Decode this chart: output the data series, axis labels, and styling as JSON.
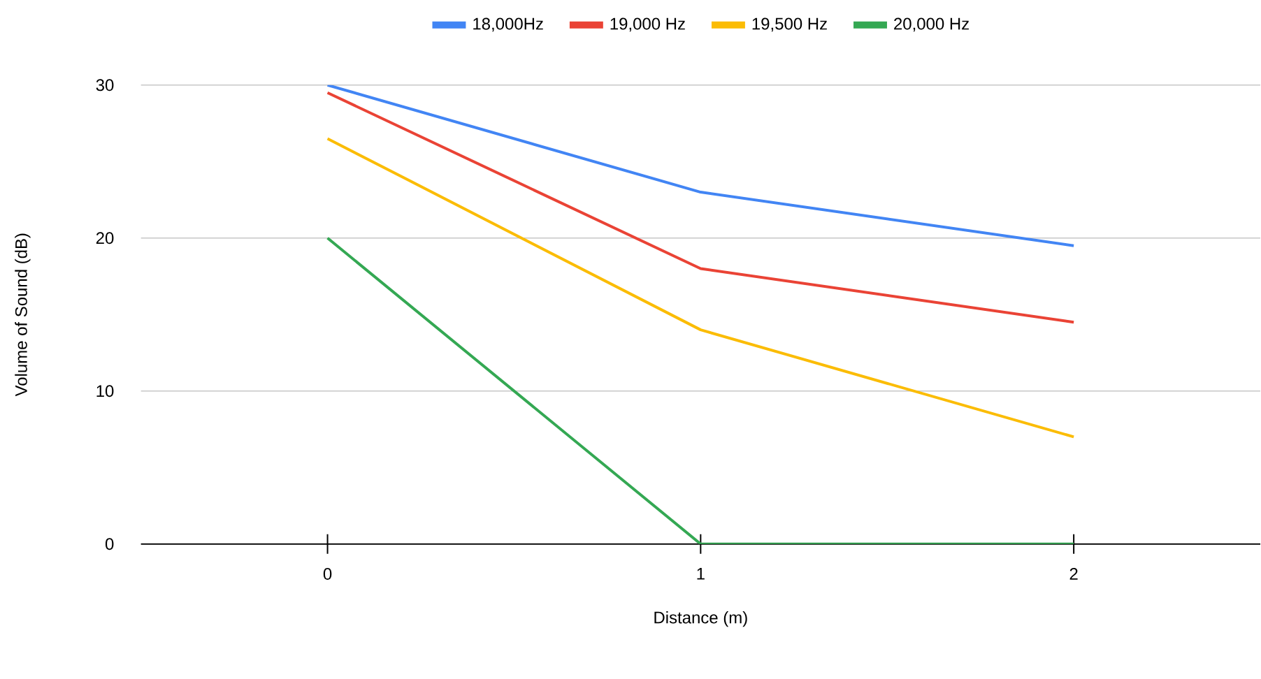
{
  "chart_data": {
    "type": "line",
    "xlabel": "Distance (m)",
    "ylabel": "Volume of Sound (dB)",
    "x": [
      0,
      1,
      2
    ],
    "series": [
      {
        "name": "18,000Hz",
        "color": "#4285f4",
        "values": [
          30,
          23,
          19.5
        ]
      },
      {
        "name": "19,000 Hz",
        "color": "#ea4335",
        "values": [
          29.5,
          18,
          14.5
        ]
      },
      {
        "name": "19,500 Hz",
        "color": "#fbbc04",
        "values": [
          26.5,
          14,
          7
        ]
      },
      {
        "name": "20,000 Hz",
        "color": "#34a853",
        "values": [
          20,
          0,
          0
        ]
      }
    ],
    "xlim": [
      -0.5,
      2.5
    ],
    "xticks": [
      0,
      1,
      2
    ],
    "ylim": [
      0,
      30
    ],
    "yticks": [
      0,
      10,
      20,
      30
    ],
    "grid": "y",
    "legend": "top"
  }
}
